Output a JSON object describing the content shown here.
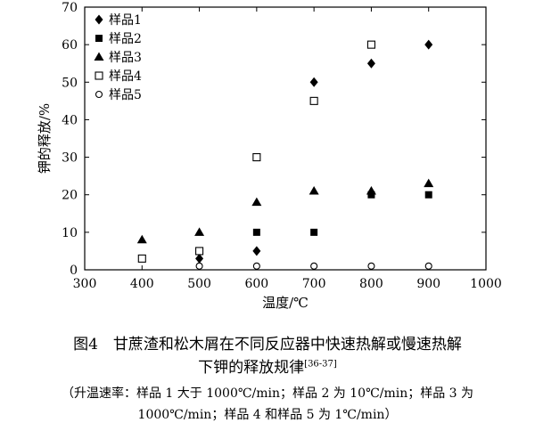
{
  "chart_data": {
    "type": "scatter",
    "xlabel": "温度/℃",
    "ylabel": "钾的释放/%",
    "xlim": [
      300,
      1000
    ],
    "ylim": [
      0,
      70
    ],
    "xticks": [
      300,
      400,
      500,
      600,
      700,
      800,
      900,
      1000
    ],
    "yticks": [
      0,
      10,
      20,
      30,
      40,
      50,
      60,
      70
    ],
    "legend_position": "top-left",
    "grid": false,
    "series": [
      {
        "name": "样品1",
        "marker": "diamond-filled",
        "points": [
          {
            "x": 500,
            "y": 3
          },
          {
            "x": 600,
            "y": 5
          },
          {
            "x": 700,
            "y": 50
          },
          {
            "x": 800,
            "y": 55
          },
          {
            "x": 900,
            "y": 60
          }
        ]
      },
      {
        "name": "样品2",
        "marker": "square-filled",
        "points": [
          {
            "x": 600,
            "y": 10
          },
          {
            "x": 700,
            "y": 10
          },
          {
            "x": 800,
            "y": 20
          },
          {
            "x": 900,
            "y": 20
          }
        ]
      },
      {
        "name": "样品3",
        "marker": "triangle-filled",
        "points": [
          {
            "x": 400,
            "y": 8
          },
          {
            "x": 500,
            "y": 10
          },
          {
            "x": 600,
            "y": 18
          },
          {
            "x": 700,
            "y": 21
          },
          {
            "x": 800,
            "y": 21
          },
          {
            "x": 900,
            "y": 23
          }
        ]
      },
      {
        "name": "样品4",
        "marker": "square-open",
        "points": [
          {
            "x": 400,
            "y": 3
          },
          {
            "x": 500,
            "y": 5
          },
          {
            "x": 600,
            "y": 30
          },
          {
            "x": 700,
            "y": 45
          },
          {
            "x": 800,
            "y": 60
          }
        ]
      },
      {
        "name": "样品5",
        "marker": "circle-open",
        "points": [
          {
            "x": 500,
            "y": 1
          },
          {
            "x": 600,
            "y": 1
          },
          {
            "x": 700,
            "y": 1
          },
          {
            "x": 800,
            "y": 1
          },
          {
            "x": 900,
            "y": 1
          }
        ]
      }
    ]
  },
  "caption": {
    "line1": "图4　甘蔗渣和松木屑在不同反应器中快速热解或慢速热解",
    "line2": "下钾的释放规律",
    "ref": "[36-37]",
    "note1": "（升温速率：样品 1 大于 1000℃/min；样品 2 为 10℃/min；样品 3 为",
    "note2": "1000℃/min；样品 4 和样品 5 为 1℃/min）"
  }
}
